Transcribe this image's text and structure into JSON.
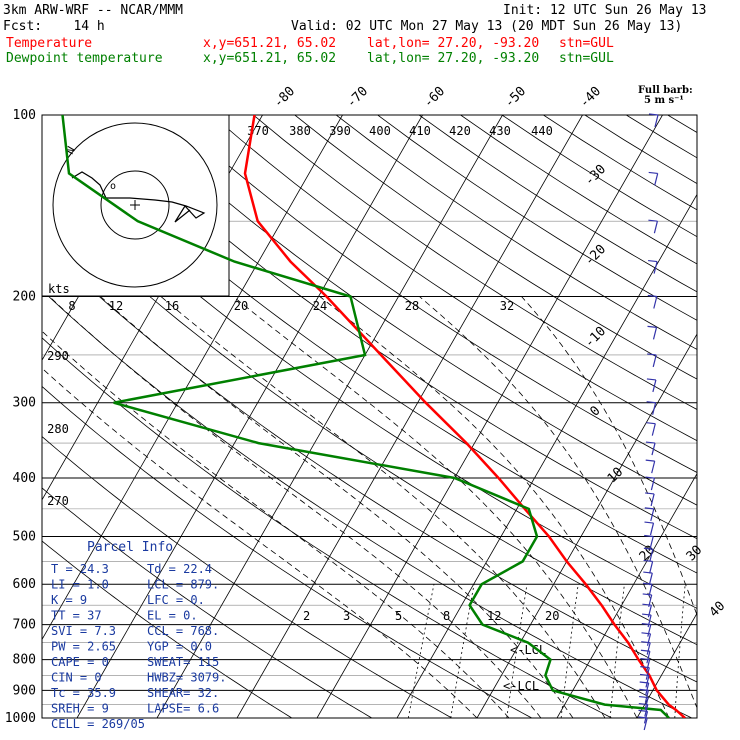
{
  "header": {
    "model": "3km ARW-WRF -- NCAR/MMM",
    "init": "Init: 12 UTC Sun 26 May 13",
    "fcst": "Fcst:    14 h",
    "valid": "Valid: 02 UTC Mon 27 May 13 (20 MDT Sun 26 May 13)",
    "temp_label": "Temperature",
    "dew_label": "Dewpoint temperature",
    "xy": "x,y=651.21, 65.02",
    "latlon": "lat,lon= 27.20, -93.20",
    "stn": "stn=GUL"
  },
  "colors": {
    "temperature": "#ff0000",
    "dewpoint": "#008000",
    "barbs": "#3333aa",
    "text_blue": "#1a3aa0"
  },
  "barb_legend": {
    "title": "Full barb:",
    "unit": "5 m s⁻¹"
  },
  "hodograph": {
    "unit_label": "kts",
    "scale_labels": [
      "8",
      "12",
      "16",
      "20",
      "24",
      "28",
      "32"
    ]
  },
  "parcel": {
    "title": "Parcel Info",
    "rows": [
      [
        "T  =    24.3",
        "Td =  22.4"
      ],
      [
        "LI =     1.0",
        "LCL =  879."
      ],
      [
        "K  =       9",
        "LFC =    0."
      ],
      [
        "TT =      37",
        "EL  =    0."
      ],
      [
        "SVI =    7.3",
        "CCL =  768."
      ],
      [
        "PW =    2.65",
        "YGP =   0.0"
      ],
      [
        "CAPE =     0",
        "SWEAT=  115"
      ],
      [
        "CIN  =     0",
        "HWBZ= 3079."
      ],
      [
        "Tc =    35.9",
        "SHEAR=  32."
      ],
      [
        "SREH =     9",
        "LAPSE=  6.6"
      ],
      [
        "CELL = 269/05",
        ""
      ]
    ]
  },
  "lcl_labels": [
    "<-LCL",
    "<-LCL"
  ],
  "chart_data": {
    "type": "line",
    "title": "",
    "xlabel": "",
    "ylabel": "",
    "pressure_ticks": [
      100,
      200,
      300,
      400,
      500,
      600,
      700,
      800,
      900,
      1000
    ],
    "temp_ticks_top": [
      "-80",
      "-70",
      "-60",
      "-50",
      "-40"
    ],
    "temp_ticks_right": [
      "-30",
      "-20",
      "-10",
      "0",
      "10",
      "20",
      "30",
      "40"
    ],
    "theta_labels": [
      "370",
      "380",
      "390",
      "400",
      "410",
      "420",
      "430",
      "440"
    ],
    "theta_labels_left": [
      "290",
      "280",
      "270"
    ],
    "mixing_ratio_labels": [
      "2",
      "3",
      "5",
      "8",
      "12",
      "20"
    ],
    "series": [
      {
        "name": "Temperature",
        "pressure": [
          1000,
          970,
          950,
          900,
          850,
          800,
          750,
          700,
          650,
          600,
          550,
          500,
          450,
          400,
          350,
          300,
          250,
          200,
          175,
          150,
          125,
          100
        ],
        "temperature_c": [
          26.0,
          24.3,
          23.0,
          20.5,
          18.5,
          16.0,
          13.5,
          10.5,
          7.5,
          4.0,
          0.0,
          -4.0,
          -9.0,
          -14.5,
          -21.0,
          -29.0,
          -38.0,
          -49.0,
          -56.0,
          -63.0,
          -68.0,
          -71.0
        ]
      },
      {
        "name": "Dewpoint temperature",
        "pressure": [
          1000,
          970,
          950,
          900,
          850,
          800,
          750,
          700,
          650,
          600,
          550,
          500,
          450,
          400,
          350,
          300,
          250,
          200,
          175,
          150,
          125,
          100
        ],
        "dewpoint_c": [
          24.0,
          22.4,
          15.0,
          7.5,
          5.5,
          5.0,
          1.0,
          -6.0,
          -9.0,
          -9.0,
          -5.5,
          -5.5,
          -8.5,
          -20.0,
          -47.0,
          -68.0,
          -40.0,
          -46.0,
          -63.0,
          -78.0,
          -90.0,
          -95.0
        ]
      }
    ]
  }
}
